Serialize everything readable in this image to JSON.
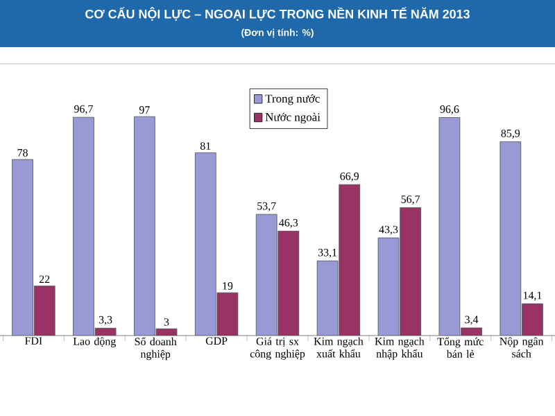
{
  "chart_data": {
    "type": "bar",
    "title": "CƠ CẤU NỘI LỰC – NGOẠI LỰC TRONG NỀN KINH TẾ NĂM 2013",
    "subtitle": "(Đơn vị tính: %)",
    "categories": [
      "FDI",
      "Lao động",
      "Số doanh nghiệp",
      "GDP",
      "Giá trị sx công nghiệp",
      "Kim ngạch xuất khẩu",
      "Kim ngạch nhập khẩu",
      "Tổng mức bán lẻ",
      "Nộp ngân sách"
    ],
    "series": [
      {
        "name": "Trong nước",
        "color": "#9999d6",
        "values": [
          78,
          96.7,
          97,
          81,
          53.7,
          33.1,
          43.3,
          96.6,
          85.9
        ],
        "value_labels": [
          "78",
          "96,7",
          "97",
          "81",
          "53,7",
          "33,1",
          "43,3",
          "96,6",
          "85,9"
        ]
      },
      {
        "name": "Nước ngoài",
        "color": "#993366",
        "values": [
          22,
          3.3,
          3,
          19,
          46.3,
          66.9,
          56.7,
          3.4,
          14.1
        ],
        "value_labels": [
          "22",
          "3,3",
          "3",
          "19",
          "46,3",
          "66,9",
          "56,7",
          "3,4",
          "14,1"
        ]
      }
    ],
    "legend": "top",
    "tick_labels": "x"
  }
}
